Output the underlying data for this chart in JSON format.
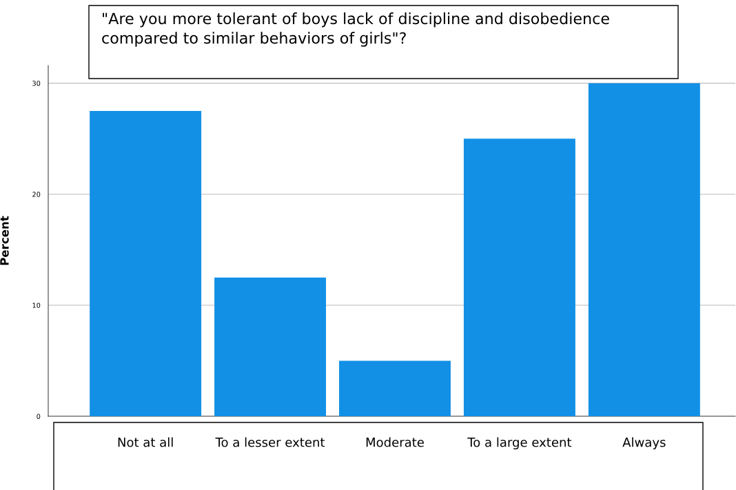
{
  "chart_data": {
    "type": "bar",
    "title": "\"Are you more tolerant of boys lack of discipline and disobedience\ncompared to similar behaviors of girls\"?",
    "ylabel": "Percent",
    "categories": [
      "Not at all",
      "To a lesser extent",
      "Moderate",
      "To a large extent",
      "Always"
    ],
    "values": [
      27.5,
      12.5,
      5.0,
      25.0,
      30.0
    ],
    "color": "#1290e6",
    "ylim": [
      0,
      31.6
    ],
    "yticks": [
      0,
      10,
      20,
      30
    ],
    "grid": "y",
    "legend": false
  }
}
